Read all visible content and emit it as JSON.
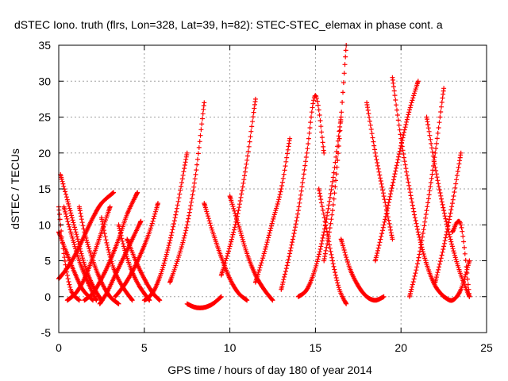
{
  "chart_data": {
    "type": "scatter",
    "title": "dSTEC Iono. truth (flrs, Lon=328, Lat=39, h=82): STEC-STEC_elemax in phase cont. a",
    "xlabel": "GPS time / hours of day 180 of year 2014",
    "ylabel": "dSTEC  / TECUs",
    "xlim": [
      0,
      25
    ],
    "ylim": [
      -5,
      35
    ],
    "xticks": [
      0,
      5,
      10,
      15,
      20,
      25
    ],
    "yticks": [
      -5,
      0,
      5,
      10,
      15,
      20,
      25,
      30,
      35
    ],
    "grid": true,
    "marker": "plus",
    "color": "#ff0000",
    "series": [
      {
        "x": [
          0.0,
          0.3,
          0.7,
          1.2
        ],
        "y": [
          12.5,
          6.0,
          1.0,
          -0.5
        ]
      },
      {
        "x": [
          0.1,
          0.5,
          1.0,
          1.5,
          2.0,
          2.5
        ],
        "y": [
          17.0,
          13.5,
          9.0,
          4.5,
          1.5,
          -0.5
        ]
      },
      {
        "x": [
          0.0,
          0.4,
          0.9,
          1.4,
          2.0
        ],
        "y": [
          9.0,
          6.5,
          3.5,
          1.0,
          -0.5
        ]
      },
      {
        "x": [
          0.0,
          0.5,
          1.0,
          1.5,
          2.0,
          2.5,
          3.2
        ],
        "y": [
          2.5,
          4.0,
          6.0,
          8.5,
          11.0,
          13.0,
          14.5
        ]
      },
      {
        "x": [
          0.3,
          0.7,
          1.2,
          1.7,
          2.2
        ],
        "y": [
          12.5,
          9.0,
          5.0,
          2.0,
          -0.5
        ]
      },
      {
        "x": [
          0.5,
          1.0,
          1.5,
          2.0,
          2.5,
          3.0
        ],
        "y": [
          -0.5,
          0.5,
          2.5,
          5.5,
          9.0,
          12.5
        ]
      },
      {
        "x": [
          1.2,
          1.5,
          2.0,
          2.5,
          3.0,
          3.5
        ],
        "y": [
          12.5,
          9.0,
          5.0,
          2.0,
          0.0,
          -1.0
        ]
      },
      {
        "x": [
          1.5,
          2.0,
          2.5,
          3.0,
          3.5,
          4.0,
          4.6
        ],
        "y": [
          -0.5,
          0.5,
          2.5,
          5.0,
          8.0,
          11.5,
          14.5
        ]
      },
      {
        "x": [
          2.5,
          2.8,
          3.2,
          3.7,
          4.3
        ],
        "y": [
          11.0,
          7.5,
          4.0,
          1.5,
          -0.5
        ]
      },
      {
        "x": [
          2.4,
          2.8,
          3.3,
          3.8,
          4.3,
          4.8
        ],
        "y": [
          -1.0,
          0.5,
          3.0,
          5.5,
          8.0,
          10.5
        ]
      },
      {
        "x": [
          3.5,
          3.8,
          4.2,
          4.7,
          5.3
        ],
        "y": [
          10.0,
          7.0,
          4.0,
          1.5,
          -0.5
        ]
      },
      {
        "x": [
          3.3,
          3.8,
          4.3,
          4.8,
          5.3,
          5.8
        ],
        "y": [
          0.0,
          1.5,
          3.5,
          6.0,
          9.0,
          13.0
        ]
      },
      {
        "x": [
          4.0,
          4.5,
          5.0,
          5.5,
          5.9
        ],
        "y": [
          8.0,
          5.0,
          2.5,
          0.5,
          -0.5
        ]
      },
      {
        "x": [
          5.0,
          5.3,
          5.7,
          6.2,
          6.8,
          7.5
        ],
        "y": [
          -0.5,
          0.0,
          1.5,
          5.0,
          11.0,
          20.0
        ]
      },
      {
        "x": [
          6.5,
          7.0,
          7.5,
          8.0,
          8.5
        ],
        "y": [
          2.0,
          5.5,
          10.0,
          17.0,
          27.0
        ]
      },
      {
        "x": [
          7.5,
          8.0,
          8.5,
          9.0,
          9.5
        ],
        "y": [
          -1.0,
          -1.5,
          -1.5,
          -1.0,
          0.0
        ]
      },
      {
        "x": [
          8.5,
          9.0,
          9.5,
          10.0,
          10.5,
          11.0
        ],
        "y": [
          13.0,
          9.0,
          5.5,
          2.5,
          0.5,
          -0.5
        ]
      },
      {
        "x": [
          10.0,
          10.5,
          11.0,
          11.5,
          12.0,
          12.5
        ],
        "y": [
          14.0,
          10.0,
          6.0,
          3.0,
          1.0,
          -0.5
        ]
      },
      {
        "x": [
          9.5,
          10.0,
          10.5,
          11.0,
          11.5
        ],
        "y": [
          3.0,
          7.0,
          12.0,
          19.0,
          27.5
        ]
      },
      {
        "x": [
          11.5,
          12.0,
          12.5,
          13.0,
          13.5
        ],
        "y": [
          2.0,
          6.0,
          10.5,
          15.0,
          22.0
        ]
      },
      {
        "x": [
          13.0,
          13.5,
          14.0,
          14.5,
          15.0,
          15.5
        ],
        "y": [
          1.0,
          6.0,
          12.0,
          20.0,
          28.0,
          20.0
        ]
      },
      {
        "x": [
          14.0,
          14.5,
          15.0,
          15.5,
          16.0,
          16.5
        ],
        "y": [
          0.0,
          1.0,
          4.0,
          9.0,
          16.0,
          25.0
        ]
      },
      {
        "x": [
          15.2,
          15.6,
          16.0,
          16.4,
          16.8
        ],
        "y": [
          15.0,
          10.0,
          5.0,
          1.0,
          -1.0
        ]
      },
      {
        "x": [
          15.5,
          16.0,
          16.4,
          16.8
        ],
        "y": [
          5.0,
          12.0,
          22.0,
          35.0
        ]
      },
      {
        "x": [
          16.5,
          17.0,
          17.5,
          18.0,
          18.5,
          19.0
        ],
        "y": [
          8.0,
          4.0,
          1.5,
          0.0,
          -0.5,
          0.0
        ]
      },
      {
        "x": [
          18.0,
          18.5,
          19.0,
          19.5
        ],
        "y": [
          27.0,
          20.0,
          14.0,
          8.0
        ]
      },
      {
        "x": [
          18.5,
          19.0,
          19.5,
          20.0,
          20.5,
          21.0
        ],
        "y": [
          5.0,
          10.0,
          15.5,
          21.0,
          26.0,
          30.0
        ]
      },
      {
        "x": [
          19.5,
          20.0,
          20.5,
          21.0,
          21.5,
          22.0,
          22.5
        ],
        "y": [
          30.5,
          22.0,
          15.0,
          9.0,
          4.5,
          1.5,
          0.0
        ]
      },
      {
        "x": [
          20.5,
          21.0,
          21.5,
          22.0,
          22.5
        ],
        "y": [
          0.0,
          5.0,
          12.0,
          20.0,
          29.0
        ]
      },
      {
        "x": [
          21.5,
          22.0,
          22.5,
          23.0,
          23.5,
          24.0
        ],
        "y": [
          25.0,
          18.0,
          12.0,
          7.0,
          3.0,
          0.0
        ]
      },
      {
        "x": [
          22.0,
          22.5,
          23.0,
          23.5
        ],
        "y": [
          2.0,
          7.0,
          13.0,
          20.0
        ]
      },
      {
        "x": [
          22.5,
          23.0,
          23.5,
          24.0
        ],
        "y": [
          0.0,
          -0.5,
          1.0,
          5.0
        ]
      },
      {
        "x": [
          23.0,
          23.5,
          24.0
        ],
        "y": [
          9.0,
          10.0,
          0.0
        ]
      }
    ]
  }
}
